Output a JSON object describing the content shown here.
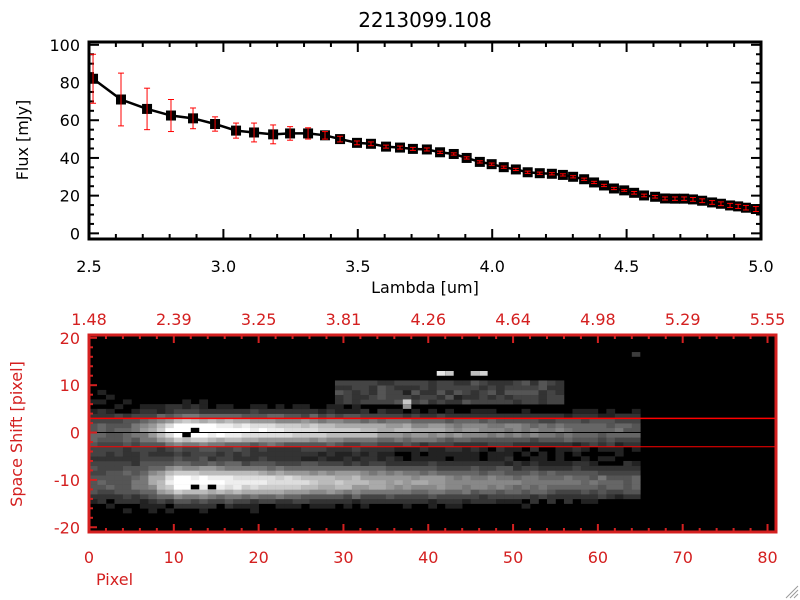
{
  "chart_data": [
    {
      "type": "line",
      "title": "2213099.108",
      "xlabel": "Lambda [um]",
      "ylabel": "Flux [mJy]",
      "xlim": [
        2.5,
        5.0
      ],
      "ylim": [
        -3,
        101.5
      ],
      "xticks": [
        "2.5",
        "3.0",
        "3.5",
        "4.0",
        "4.5",
        "5.0"
      ],
      "xtick_values": [
        2.5,
        3.0,
        3.5,
        4.0,
        4.5,
        5.0
      ],
      "yticks": [
        "0",
        "20",
        "40",
        "60",
        "80",
        "100"
      ],
      "ytick_values": [
        0,
        20,
        40,
        60,
        80,
        100
      ],
      "grid": false,
      "line_color": "#000000",
      "error_color": "#ff0000",
      "x": [
        2.515,
        2.619,
        2.716,
        2.805,
        2.887,
        2.969,
        3.047,
        3.114,
        3.185,
        3.248,
        3.315,
        3.378,
        3.434,
        3.497,
        3.549,
        3.605,
        3.657,
        3.705,
        3.757,
        3.806,
        3.857,
        3.905,
        3.954,
        3.998,
        4.043,
        4.088,
        4.132,
        4.177,
        4.222,
        4.263,
        4.301,
        4.342,
        4.379,
        4.416,
        4.453,
        4.491,
        4.528,
        4.565,
        4.606,
        4.643,
        4.68,
        4.714,
        4.747,
        4.781,
        4.818,
        4.851,
        4.885,
        4.915,
        4.944,
        4.981
      ],
      "y": [
        82,
        71,
        66,
        62.5,
        61,
        58,
        54.5,
        53.5,
        52.5,
        53,
        53,
        52,
        50,
        48,
        47.5,
        46,
        45.5,
        44.8,
        44.5,
        43,
        42.1,
        40,
        37.9,
        36.7,
        35.1,
        33.9,
        32.4,
        31.9,
        31.6,
        31,
        30,
        28.7,
        27,
        25.4,
        23.8,
        22.8,
        21.5,
        20.1,
        19.4,
        18.5,
        18.4,
        18.4,
        18,
        17.3,
        16.4,
        15.7,
        14.8,
        14.3,
        13.6,
        12.9
      ],
      "yerr": [
        13,
        14,
        11,
        8.5,
        5.5,
        3.8,
        4,
        5,
        5,
        3.6,
        3,
        2,
        1.5,
        1,
        1,
        0.8,
        0.8,
        0.8,
        0.8,
        0.6,
        0.6,
        0.6,
        0.6,
        0.6,
        0.6,
        0.6,
        0.6,
        0.6,
        0.6,
        0.6,
        0.6,
        0.6,
        0.6,
        0.6,
        0.6,
        0.5,
        0.7,
        0.7,
        0.7,
        0.8,
        0.9,
        0.9,
        1,
        1,
        1,
        1,
        1.1,
        1.1,
        1.2,
        1.3
      ]
    },
    {
      "type": "heatmap",
      "xlabel": "Pixel",
      "ylabel": "Space Shift [pixel]",
      "xlim": [
        0,
        81
      ],
      "ylim": [
        -21,
        20.6
      ],
      "xticks": [
        "0",
        "10",
        "20",
        "30",
        "40",
        "50",
        "60",
        "70",
        "80"
      ],
      "xtick_values": [
        0,
        10,
        20,
        30,
        40,
        50,
        60,
        70,
        80
      ],
      "yticks": [
        "-20",
        "-10",
        "0",
        "10",
        "20"
      ],
      "ytick_values": [
        -20,
        -10,
        0,
        10,
        20
      ],
      "top_axis_label_values": [
        "1.48",
        "2.39",
        "3.25",
        "3.81",
        "4.26",
        "4.64",
        "4.98",
        "5.29",
        "5.55"
      ],
      "trace_centers": [
        0,
        -11
      ],
      "extraction_window": [
        -3,
        3
      ],
      "data_extent_pixel": 65,
      "axis_color": "#d42020",
      "window_line_color": "#ff0000",
      "colormap": "gray"
    }
  ]
}
